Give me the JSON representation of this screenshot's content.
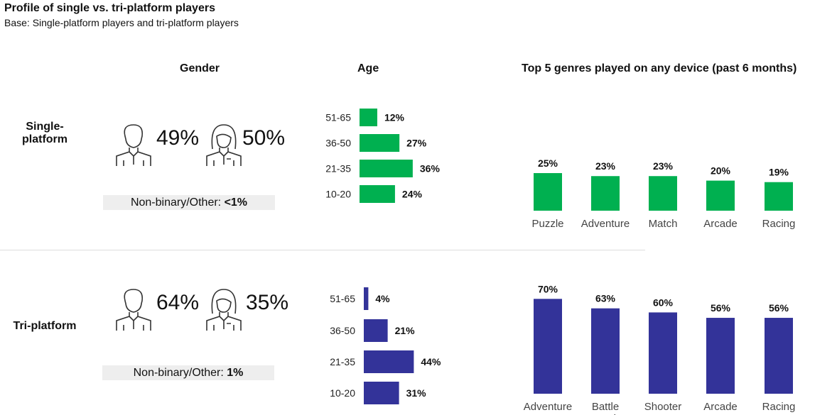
{
  "title": "Profile of single vs. tri-platform players",
  "subtitle": "Base: Single-platform players and tri-platform players",
  "colors": {
    "single": "#00B050",
    "tri": "#333399"
  },
  "chart_data": [
    {
      "type": "bar",
      "title": "Gender",
      "groups": [
        {
          "name": "Single-platform",
          "male": "49%",
          "female": "50%",
          "other": "Non-binary/Other: <1%",
          "other_prefix": "Non-binary/Other: ",
          "other_value": "<1%"
        },
        {
          "name": "Tri-platform",
          "male": "64%",
          "female": "35%",
          "other": "Non-binary/Other: 1%",
          "other_prefix": "Non-binary/Other: ",
          "other_value": "1%"
        }
      ]
    },
    {
      "type": "bar",
      "title": "Age",
      "categories": [
        "51-65",
        "36-50",
        "21-35",
        "10-20"
      ],
      "series": [
        {
          "name": "Single-platform",
          "values": [
            12,
            27,
            36,
            24
          ],
          "labels": [
            "12%",
            "27%",
            "36%",
            "24%"
          ]
        },
        {
          "name": "Tri-platform",
          "values": [
            4,
            21,
            44,
            31
          ],
          "labels": [
            "4%",
            "21%",
            "44%",
            "31%"
          ]
        }
      ]
    },
    {
      "type": "bar",
      "title": "Top 5 genres played on any device (past 6 months)",
      "series": [
        {
          "name": "Single-platform",
          "categories": [
            "Puzzle",
            "Adventure",
            "Match",
            "Arcade",
            "Racing"
          ],
          "values": [
            25,
            23,
            23,
            20,
            19
          ],
          "labels": [
            "25%",
            "23%",
            "23%",
            "20%",
            "19%"
          ]
        },
        {
          "name": "Tri-platform",
          "categories": [
            "Adventure",
            "Battle Royale",
            "Shooter",
            "Arcade",
            "Racing"
          ],
          "values": [
            70,
            63,
            60,
            56,
            56
          ],
          "labels": [
            "70%",
            "63%",
            "60%",
            "56%",
            "56%"
          ]
        }
      ]
    }
  ],
  "rows": {
    "single": "Single-platform",
    "tri": "Tri-platform"
  }
}
